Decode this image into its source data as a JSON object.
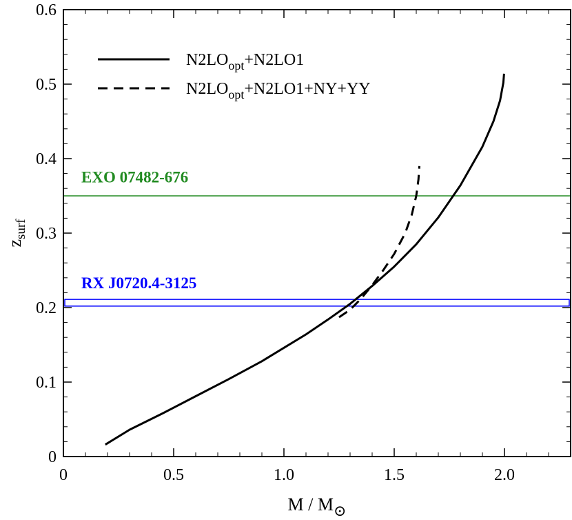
{
  "chart_data": {
    "type": "line",
    "xlabel": "M / M",
    "xlabel_symbol": "⊙",
    "ylabel": "z",
    "ylabel_sub": "surf",
    "xlim": [
      0,
      2.3
    ],
    "ylim": [
      0,
      0.6
    ],
    "xticks": [
      "0",
      "0.5",
      "1.0",
      "1.5",
      "2.0"
    ],
    "xtick_values": [
      0,
      0.5,
      1.0,
      1.5,
      2.0
    ],
    "yticks": [
      "0",
      "0.1",
      "0.2",
      "0.3",
      "0.4",
      "0.5",
      "0.6"
    ],
    "ytick_values": [
      0,
      0.1,
      0.2,
      0.3,
      0.4,
      0.5,
      0.6
    ],
    "legend_position": "top-left",
    "series": [
      {
        "legend": "N2LO",
        "legend_sub": "opt",
        "legend_tail": "+N2LO1",
        "style": "solid",
        "color": "#000000",
        "points": [
          [
            0.19,
            0.016
          ],
          [
            0.3,
            0.036
          ],
          [
            0.45,
            0.058
          ],
          [
            0.6,
            0.081
          ],
          [
            0.75,
            0.104
          ],
          [
            0.9,
            0.128
          ],
          [
            1.0,
            0.146
          ],
          [
            1.1,
            0.164
          ],
          [
            1.2,
            0.184
          ],
          [
            1.3,
            0.205
          ],
          [
            1.4,
            0.229
          ],
          [
            1.5,
            0.255
          ],
          [
            1.6,
            0.285
          ],
          [
            1.7,
            0.321
          ],
          [
            1.8,
            0.364
          ],
          [
            1.9,
            0.416
          ],
          [
            1.95,
            0.45
          ],
          [
            1.98,
            0.478
          ],
          [
            1.995,
            0.502
          ],
          [
            1.998,
            0.514
          ]
        ]
      },
      {
        "legend": "N2LO",
        "legend_sub": "opt",
        "legend_tail": "+N2LO1+NY+YY",
        "style": "dashed",
        "color": "#000000",
        "points": [
          [
            1.25,
            0.187
          ],
          [
            1.3,
            0.197
          ],
          [
            1.35,
            0.212
          ],
          [
            1.4,
            0.23
          ],
          [
            1.45,
            0.25
          ],
          [
            1.5,
            0.272
          ],
          [
            1.55,
            0.3
          ],
          [
            1.58,
            0.325
          ],
          [
            1.6,
            0.35
          ],
          [
            1.61,
            0.372
          ],
          [
            1.614,
            0.39
          ]
        ]
      }
    ],
    "annotations": [
      {
        "text": "EXO 07482-676",
        "color": "#228b22",
        "type": "hline",
        "y": 0.35,
        "label_x": 0.2,
        "label_y": 0.368
      },
      {
        "text": "RX J0720.4-3125",
        "color": "#0000ff",
        "type": "band",
        "y_low": 0.202,
        "y_high": 0.211,
        "label_x": 0.2,
        "label_y": 0.226
      }
    ]
  }
}
